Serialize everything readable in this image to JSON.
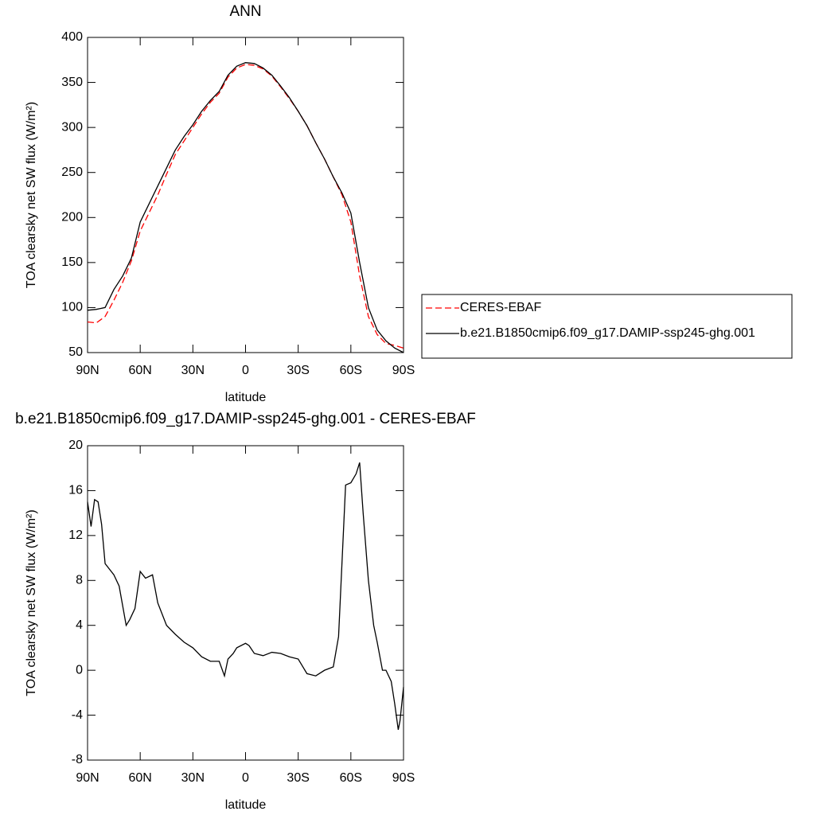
{
  "chart_data": [
    {
      "type": "line",
      "title": "ANN",
      "x_label": "latitude",
      "y_label": "TOA clearsky net SW flux (W/m²)",
      "x": [
        90,
        85,
        80,
        75,
        70,
        65,
        60,
        55,
        50,
        45,
        40,
        35,
        30,
        25,
        20,
        15,
        10,
        5,
        0,
        -5,
        -10,
        -15,
        -20,
        -25,
        -30,
        -35,
        -40,
        -45,
        -50,
        -55,
        -60,
        -65,
        -70,
        -75,
        -80,
        -85,
        -90
      ],
      "series": [
        {
          "name": "CERES-EBAF",
          "color": "#ff0000",
          "dashed": true,
          "values": [
            84,
            83,
            90,
            108,
            128,
            152,
            185,
            205,
            225,
            248,
            270,
            285,
            300,
            315,
            328,
            338,
            356,
            366,
            370,
            369,
            365,
            357,
            345,
            332,
            318,
            302,
            283,
            265,
            245,
            225,
            195,
            135,
            90,
            70,
            60,
            58,
            55
          ]
        },
        {
          "name": "b.e21.B1850cmip6.f09_g17.DAMIP-ssp245-ghg.001",
          "color": "#000000",
          "dashed": false,
          "values": [
            97,
            98,
            100,
            120,
            135,
            155,
            195,
            215,
            235,
            255,
            275,
            290,
            303,
            318,
            330,
            340,
            358,
            368,
            372,
            371,
            366,
            358,
            346,
            333,
            318,
            302,
            283,
            265,
            245,
            227,
            205,
            150,
            100,
            75,
            63,
            55,
            50
          ]
        }
      ],
      "xlim": [
        90,
        -90
      ],
      "xticks": [
        {
          "value": 90,
          "label": "90N"
        },
        {
          "value": 60,
          "label": "60N"
        },
        {
          "value": 30,
          "label": "30N"
        },
        0,
        {
          "value": -30,
          "label": "30S"
        },
        {
          "value": -60,
          "label": "60S"
        },
        {
          "value": -90,
          "label": "90S"
        }
      ],
      "ylim": [
        50,
        400
      ],
      "yticks": [
        50,
        100,
        150,
        200,
        250,
        300,
        350,
        400
      ],
      "legend": "right"
    },
    {
      "type": "line",
      "title": "b.e21.B1850cmip6.f09_g17.DAMIP-ssp245-ghg.001 - CERES-EBAF",
      "x_label": "latitude",
      "y_label": "TOA clearsky net SW flux (W/m²)",
      "x": [
        90,
        88,
        86,
        84,
        82,
        80,
        75,
        72,
        68,
        66,
        63,
        60,
        57,
        53,
        50,
        45,
        40,
        35,
        30,
        25,
        20,
        15,
        12,
        10,
        7,
        5,
        0,
        -2,
        -5,
        -10,
        -15,
        -20,
        -25,
        -30,
        -35,
        -40,
        -45,
        -50,
        -53,
        -57,
        -60,
        -63,
        -65,
        -67,
        -70,
        -73,
        -75,
        -78,
        -80,
        -83,
        -85,
        -87,
        -88,
        -90
      ],
      "color": "#000000",
      "values": [
        15,
        12.8,
        15.2,
        15,
        13,
        9.5,
        8.5,
        7.5,
        4,
        4.5,
        5.5,
        8.8,
        8.2,
        8.5,
        6,
        4,
        3.2,
        2.5,
        2,
        1.2,
        0.8,
        0.8,
        -0.5,
        1,
        1.5,
        2,
        2.4,
        2.2,
        1.5,
        1.3,
        1.6,
        1.5,
        1.2,
        1,
        -0.3,
        -0.5,
        0,
        0.3,
        3,
        16.5,
        16.7,
        17.5,
        18.5,
        14,
        8,
        4,
        2.5,
        0,
        0,
        -1,
        -3,
        -5.3,
        -4.5,
        -1.5
      ],
      "xlim": [
        90,
        -90
      ],
      "xticks": [
        {
          "value": 90,
          "label": "90N"
        },
        {
          "value": 60,
          "label": "60N"
        },
        {
          "value": 30,
          "label": "30N"
        },
        0,
        {
          "value": -30,
          "label": "30S"
        },
        {
          "value": -60,
          "label": "60S"
        },
        {
          "value": -90,
          "label": "90S"
        }
      ],
      "ylim": [
        -8,
        20
      ],
      "yticks": [
        -8,
        -4,
        0,
        4,
        8,
        12,
        16,
        20
      ]
    }
  ]
}
